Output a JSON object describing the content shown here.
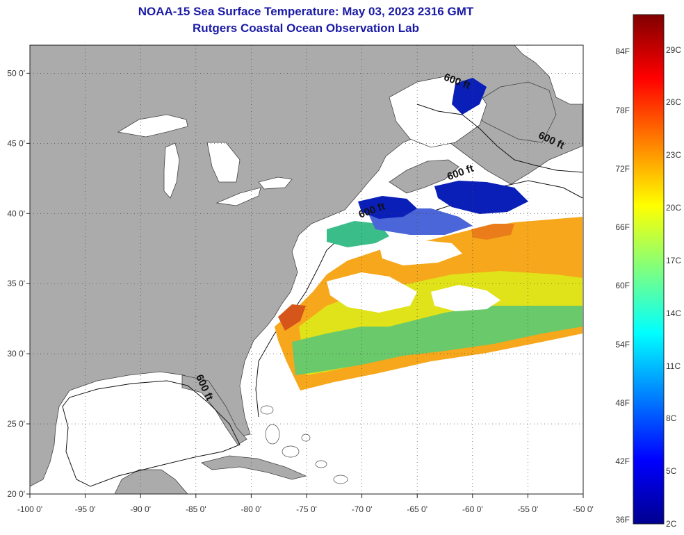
{
  "title": "NOAA-15 Sea Surface Temperature:  May 03, 2023 2316 GMT",
  "subtitle": "Rutgers Coastal Ocean Observation Lab",
  "map": {
    "lon_range": [
      -100,
      -50
    ],
    "lat_range": [
      20,
      52
    ],
    "lon_ticks": [
      {
        "value": -100,
        "label": "-100 0'"
      },
      {
        "value": -95,
        "label": "-95 0'"
      },
      {
        "value": -90,
        "label": "-90 0'"
      },
      {
        "value": -85,
        "label": "-85 0'"
      },
      {
        "value": -80,
        "label": "-80 0'"
      },
      {
        "value": -75,
        "label": "-75 0'"
      },
      {
        "value": -70,
        "label": "-70 0'"
      },
      {
        "value": -65,
        "label": "-65 0'"
      },
      {
        "value": -60,
        "label": "-60 0'"
      },
      {
        "value": -55,
        "label": "-55 0'"
      },
      {
        "value": -50,
        "label": "-50 0'"
      }
    ],
    "lat_ticks": [
      {
        "value": 20,
        "label": "20 0'"
      },
      {
        "value": 25,
        "label": "25 0'"
      },
      {
        "value": 30,
        "label": "30 0'"
      },
      {
        "value": 35,
        "label": "35 0'"
      },
      {
        "value": 40,
        "label": "40 0'"
      },
      {
        "value": 45,
        "label": "45 0'"
      },
      {
        "value": 50,
        "label": "50 0'"
      }
    ],
    "grid": true,
    "contour_labels": [
      {
        "text": "600 ft",
        "lon": -61.5,
        "lat": 49.2
      },
      {
        "text": "600 ft",
        "lon": -53.0,
        "lat": 45.0
      },
      {
        "text": "600 ft",
        "lon": -61.0,
        "lat": 42.7
      },
      {
        "text": "600 ft",
        "lon": -69.0,
        "lat": 40.0
      },
      {
        "text": "600 ft",
        "lon": -84.5,
        "lat": 27.5
      }
    ],
    "land_color": "#ababab",
    "ocean_color": "#ffffff"
  },
  "colorbar": {
    "fahrenheit_labels": [
      "84F",
      "78F",
      "72F",
      "66F",
      "60F",
      "54F",
      "48F",
      "42F",
      "36F"
    ],
    "celsius_labels": [
      "29C",
      "26C",
      "23C",
      "20C",
      "17C",
      "14C",
      "11C",
      "8C",
      "5C",
      "2C"
    ],
    "range_c": [
      2,
      31
    ]
  }
}
